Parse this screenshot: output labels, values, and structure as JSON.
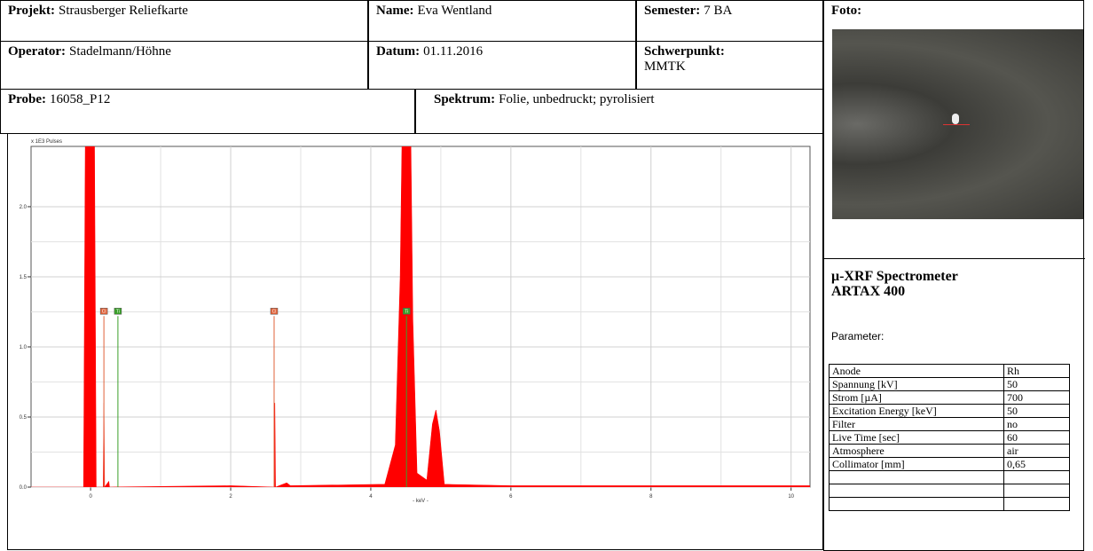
{
  "header": {
    "fields": [
      {
        "label": "Projekt:",
        "value": "Strausberger Reliefkarte"
      },
      {
        "label": "Name:",
        "value": "Eva Wentland"
      },
      {
        "label": "Semester:",
        "value": "7 BA"
      },
      {
        "label": "Operator:",
        "value": "Stadelmann/Höhne"
      },
      {
        "label": "Datum:",
        "value": "01.11.2016"
      },
      {
        "label": "Schwerpunkt:",
        "value": "MMTK"
      },
      {
        "label": "Probe:",
        "value": "16058_P12"
      },
      {
        "label": "Spektrum:",
        "value": "Folie, unbedruckt; pyrolisiert"
      }
    ]
  },
  "side": {
    "photo_label": "Foto:",
    "title": "μ-XRF Spectrometer",
    "subtitle": "ARTAX 400",
    "parameter_label": "Parameter:",
    "parameters": [
      [
        "Anode",
        "Rh"
      ],
      [
        "Spannung [kV]",
        "50"
      ],
      [
        "Strom  [µA]",
        "700"
      ],
      [
        "Excitation  Energy [keV]",
        "50"
      ],
      [
        "Filter",
        "no"
      ],
      [
        "Live Time  [sec]",
        "60"
      ],
      [
        "Atmosphere",
        "air"
      ],
      [
        "Collimator [mm]",
        "0,65"
      ]
    ]
  },
  "chart_data": {
    "type": "area",
    "y_label": "x 1E3 Pulses",
    "x_label": "- keV -",
    "color": "#ff0000",
    "x": [
      -0.85,
      -0.1,
      -0.07,
      0.05,
      0.08,
      0.18,
      0.19,
      0.2,
      0.26,
      0.27,
      2.0,
      2.62,
      2.63,
      2.64,
      2.8,
      2.85,
      4.2,
      4.35,
      4.42,
      4.46,
      4.56,
      4.6,
      4.66,
      4.8,
      4.88,
      4.93,
      4.98,
      5.05,
      6.0,
      10.27
    ],
    "values": [
      0,
      0,
      3,
      3,
      0,
      0,
      0.6,
      0,
      0.04,
      0,
      0.01,
      0,
      0.6,
      0,
      0.03,
      0.01,
      0.02,
      0.3,
      1.5,
      3,
      3,
      1.2,
      0.1,
      0.05,
      0.45,
      0.55,
      0.4,
      0.02,
      0.01,
      0.01
    ],
    "element_lines": [
      {
        "name": "Cl",
        "color": "#e0623a",
        "x": [
          0.19,
          2.62
        ]
      },
      {
        "name": "Ti",
        "color": "#3aa02a",
        "x": [
          0.39,
          4.51
        ]
      }
    ],
    "marker_height": 1.22,
    "xlim": [
      -0.85,
      10.27
    ],
    "ylim": [
      0,
      2.43
    ],
    "xticks": [
      0,
      2,
      4,
      6,
      8,
      10
    ],
    "yticks": [
      {
        "value": 0,
        "label": "0.0"
      },
      {
        "value": 0.5,
        "label": "0.5"
      },
      {
        "value": 1,
        "label": "1.0"
      },
      {
        "value": 1.5,
        "label": "1.5"
      },
      {
        "value": 2,
        "label": "2.0"
      }
    ],
    "grid": true
  }
}
